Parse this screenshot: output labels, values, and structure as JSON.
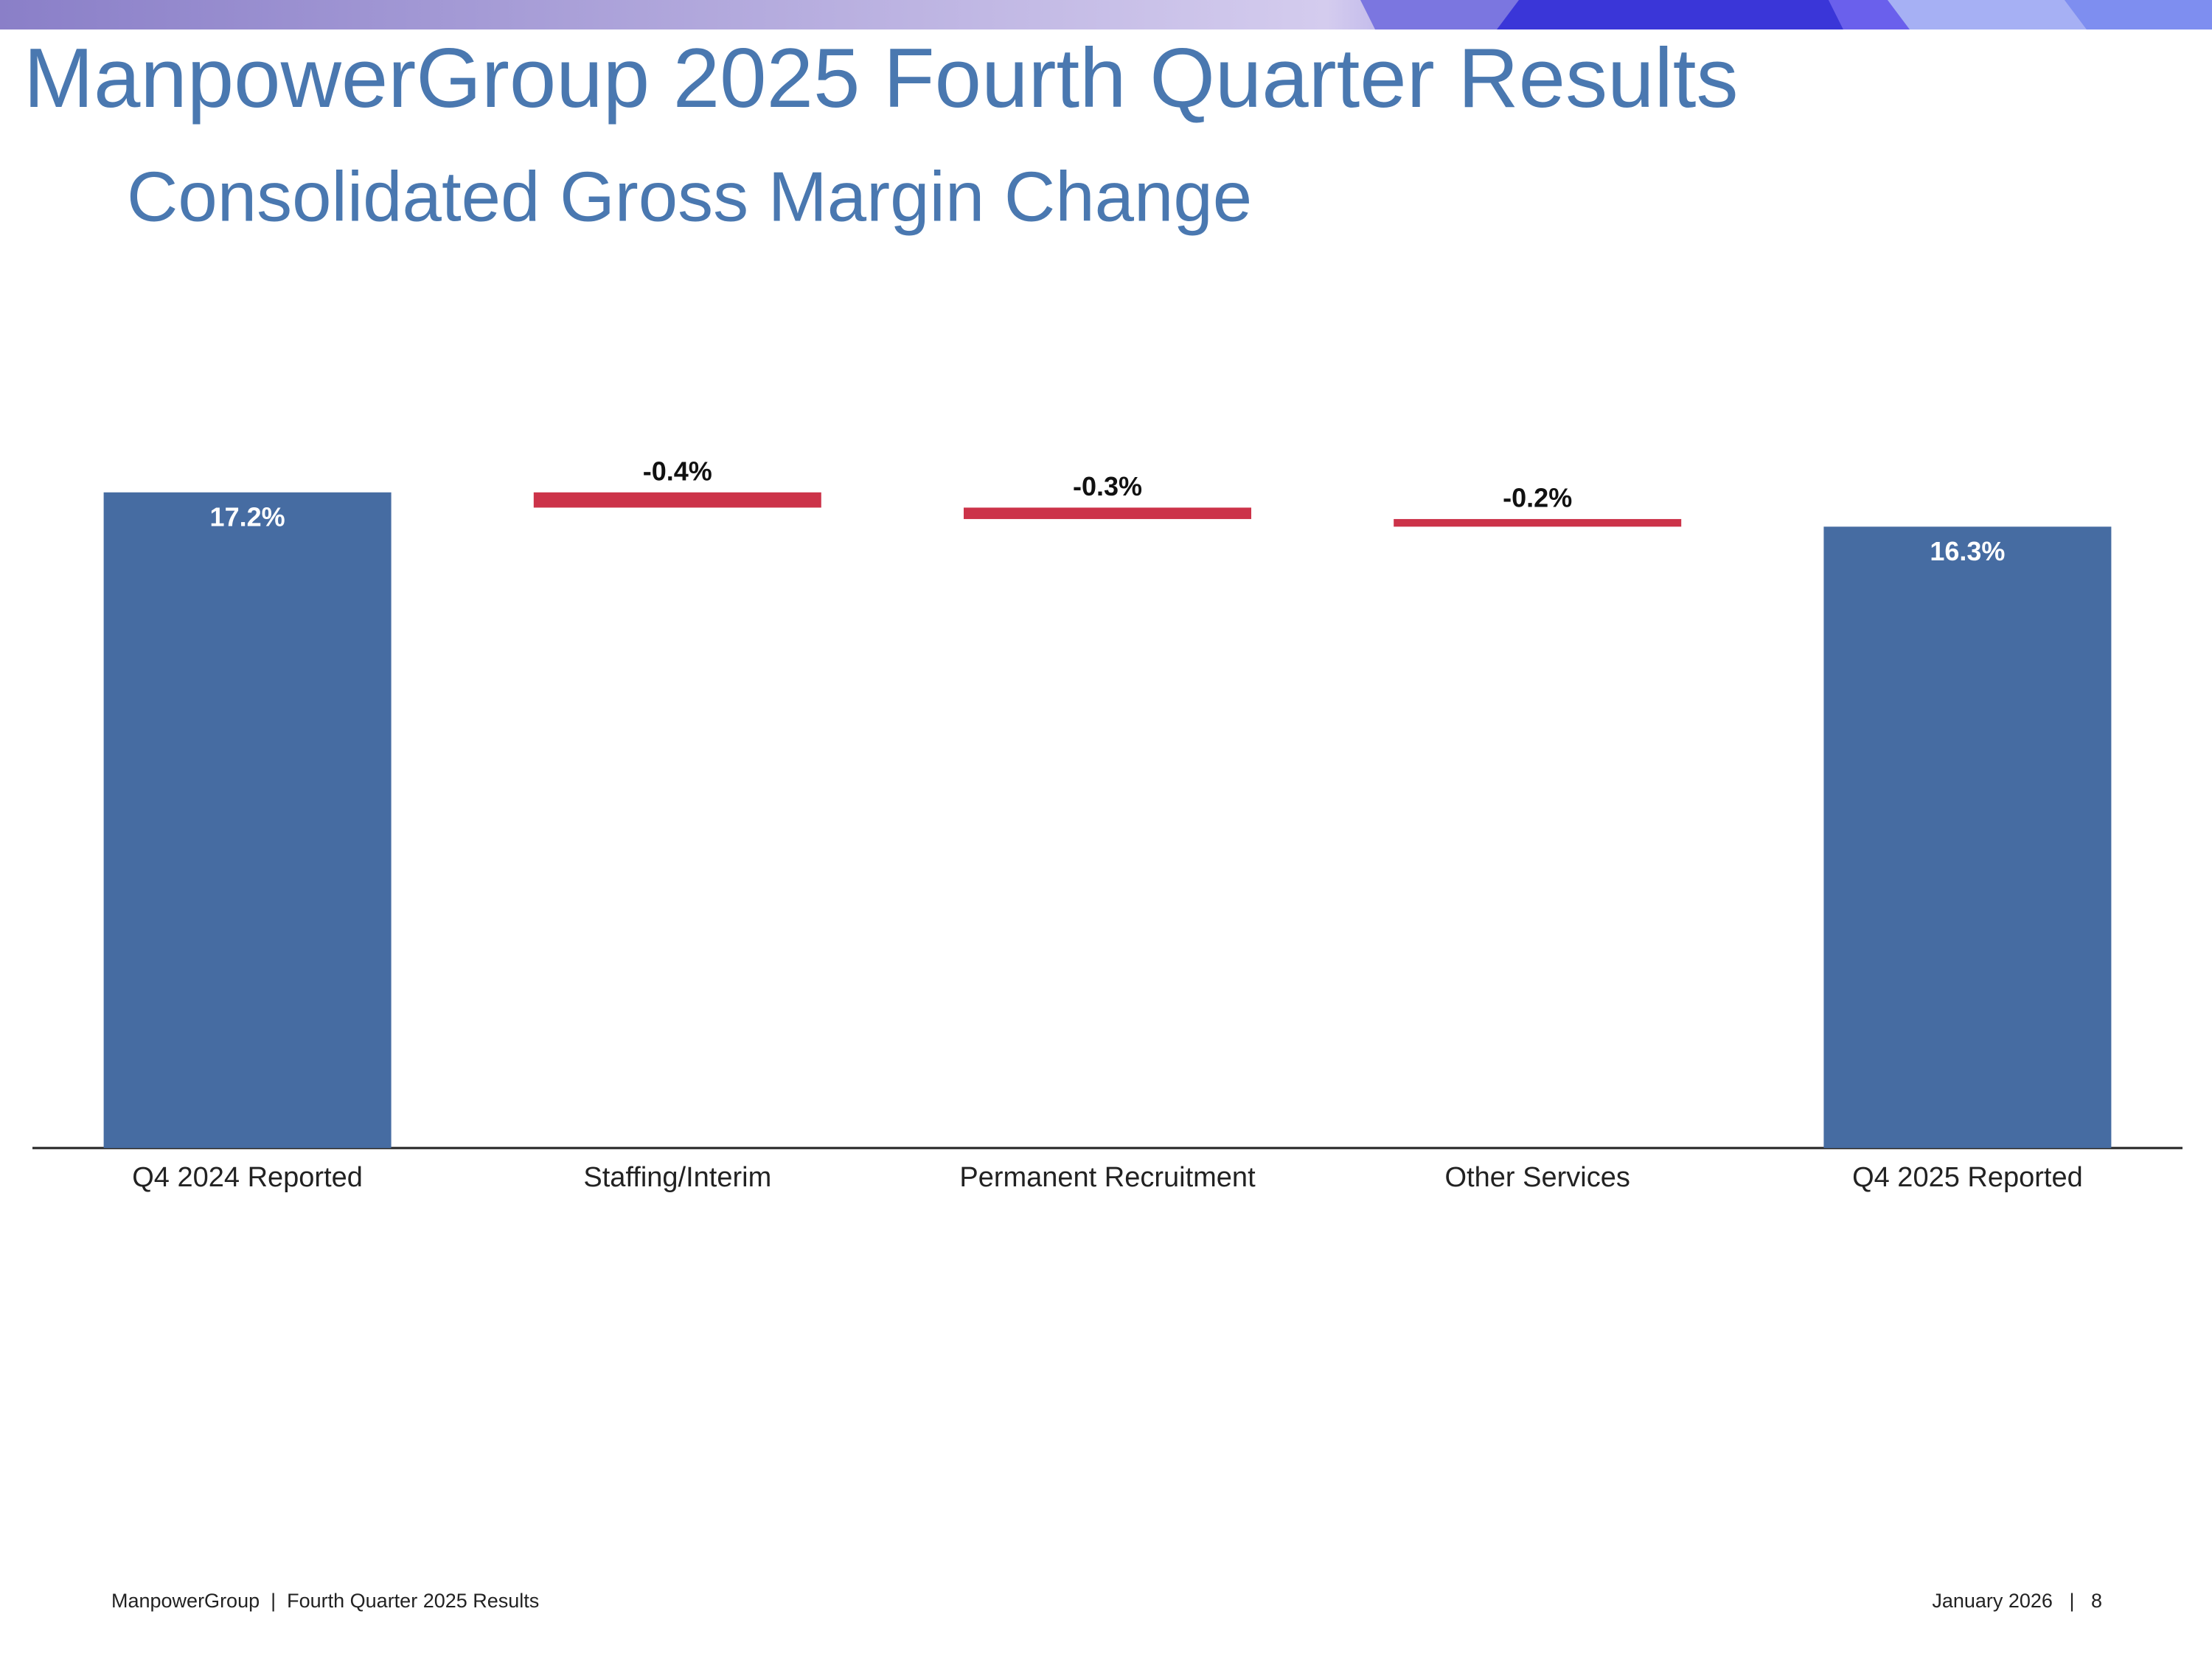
{
  "header": {
    "title": "ManpowerGroup 2025 Fourth Quarter Results"
  },
  "chart_data": {
    "type": "waterfall",
    "title": "Consolidated Gross Margin Change",
    "categories": [
      "Q4 2024 Reported",
      "Staffing/Interim",
      "Permanent Recruitment",
      "Other Services",
      "Q4 2025 Reported"
    ],
    "values": [
      17.2,
      -0.4,
      -0.3,
      -0.2,
      16.3
    ],
    "value_labels": [
      "17.2%",
      "-0.4%",
      "-0.3%",
      "-0.2%",
      "16.3%"
    ],
    "measure": [
      "total",
      "relative",
      "relative",
      "relative",
      "total"
    ],
    "total_color": "#466ca2",
    "decrease_color": "#cc3349",
    "ylim": [
      0,
      20
    ]
  },
  "footer": {
    "left": "ManpowerGroup  |  Fourth Quarter 2025 Results",
    "right": "January 2026   |   8"
  }
}
